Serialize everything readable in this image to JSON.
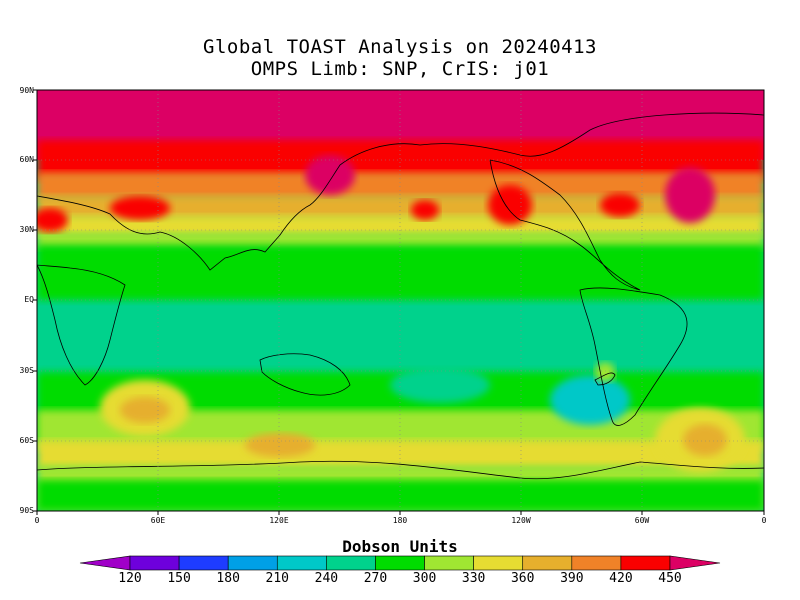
{
  "title_line1": "Global TOAST Analysis on 20240413",
  "title_line2": "OMPS Limb: SNP,  CrIS: j01",
  "lat_labels": [
    "90N",
    "60N",
    "30N",
    "EQ",
    "30S",
    "60S",
    "90S"
  ],
  "lon_labels": [
    "0",
    "60E",
    "120E",
    "180",
    "120W",
    "60W",
    "0"
  ],
  "colorbar": {
    "title": "Dobson Units",
    "levels": [
      "120",
      "150",
      "180",
      "210",
      "240",
      "270",
      "300",
      "330",
      "360",
      "390",
      "420",
      "450"
    ],
    "colors": [
      "#a000c8",
      "#6e00dc",
      "#1e3cff",
      "#00a0e6",
      "#00c8c8",
      "#00d28c",
      "#00dc00",
      "#a0e632",
      "#e6dc32",
      "#e6af2d",
      "#f08228",
      "#fa0000",
      "#dc0064"
    ]
  }
}
